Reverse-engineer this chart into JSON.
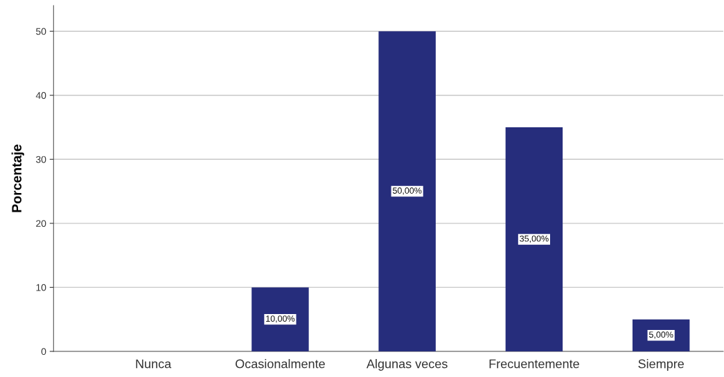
{
  "chart_data": {
    "type": "bar",
    "ylabel": "Porcentaje",
    "categories": [
      "Nunca",
      "Ocasionalmente",
      "Algunas veces",
      "Frecuentemente",
      "Siempre"
    ],
    "values": [
      0,
      10,
      50,
      35,
      5
    ],
    "value_labels": [
      null,
      "10,00%",
      "50,00%",
      "35,00%",
      "5,00%"
    ],
    "color": "#262d7c",
    "ylim": [
      0,
      54
    ],
    "yticks": [
      0,
      10,
      20,
      30,
      40,
      50
    ],
    "grid": "y"
  }
}
